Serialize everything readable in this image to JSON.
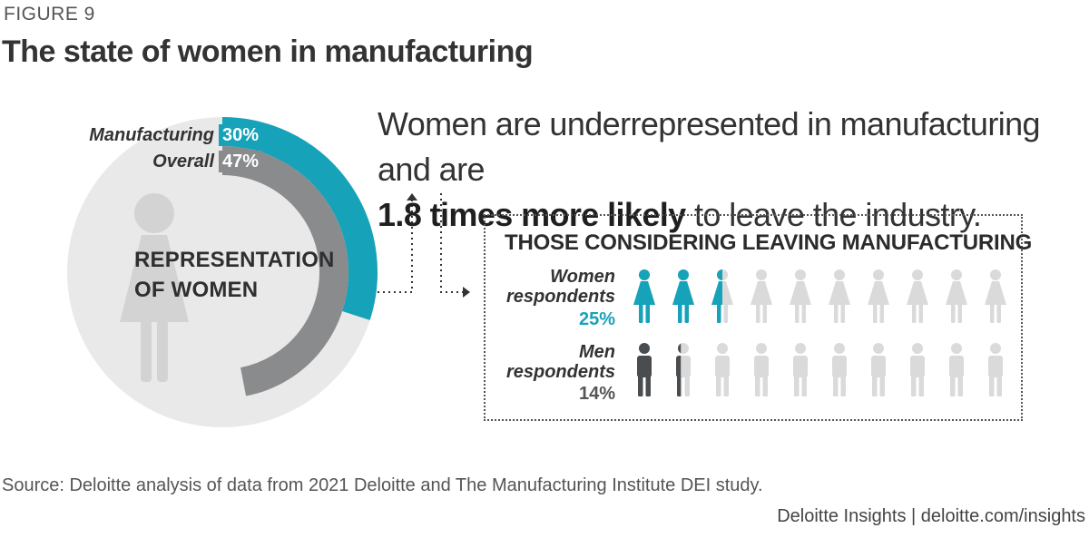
{
  "header": {
    "figure_label": "FIGURE 9",
    "title": "The state of women in manufacturing"
  },
  "headline": {
    "line1": "Women are underrepresented in manufacturing and are",
    "line2_bold": "1.8 times more likely",
    "line2_rest": " to leave the industry."
  },
  "donut": {
    "center_line1": "REPRESENTATION",
    "center_line2": "OF WOMEN"
  },
  "leaving": {
    "title": "THOSE CONSIDERING LEAVING MANUFACTURING",
    "women_line1": "Women",
    "women_line2": "respondents",
    "women_pct": "25%",
    "men_line1": "Men",
    "men_line2": "respondents",
    "men_pct": "14%"
  },
  "footer": {
    "source": "Source: Deloitte analysis of data from 2021 Deloitte and The Manufacturing Institute DEI study.",
    "credit": "Deloitte Insights | deloitte.com/insights"
  },
  "colors": {
    "teal": "#16a2b8",
    "gray": "#8a8b8d",
    "light": "#e9e9e9",
    "dark": "#4a4d50",
    "pale_icon": "#dadada"
  },
  "chart_data": [
    {
      "type": "pie",
      "title": "REPRESENTATION OF WOMEN",
      "series": [
        {
          "name": "Manufacturing",
          "label": "30%",
          "value": 30
        },
        {
          "name": "Overall",
          "label": "47%",
          "value": 47
        }
      ],
      "max": 100
    },
    {
      "type": "bar",
      "title": "THOSE CONSIDERING LEAVING MANUFACTURING",
      "categories": [
        "Women respondents",
        "Men respondents"
      ],
      "values": [
        25,
        14
      ],
      "icon_count": 10,
      "unit": "%"
    }
  ]
}
